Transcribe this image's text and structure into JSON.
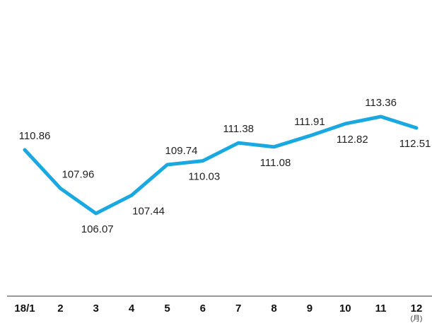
{
  "chart_data": {
    "type": "line",
    "categories": [
      "18/1",
      "2",
      "3",
      "4",
      "5",
      "6",
      "7",
      "8",
      "9",
      "10",
      "11",
      "12"
    ],
    "values": [
      110.86,
      107.96,
      106.07,
      107.44,
      109.74,
      110.03,
      111.38,
      111.08,
      111.91,
      112.82,
      113.36,
      112.51
    ],
    "x_unit_label": "(月)",
    "line_color": "#1aa8e0",
    "axis_color": "#333333",
    "grid": false,
    "legend": false
  }
}
